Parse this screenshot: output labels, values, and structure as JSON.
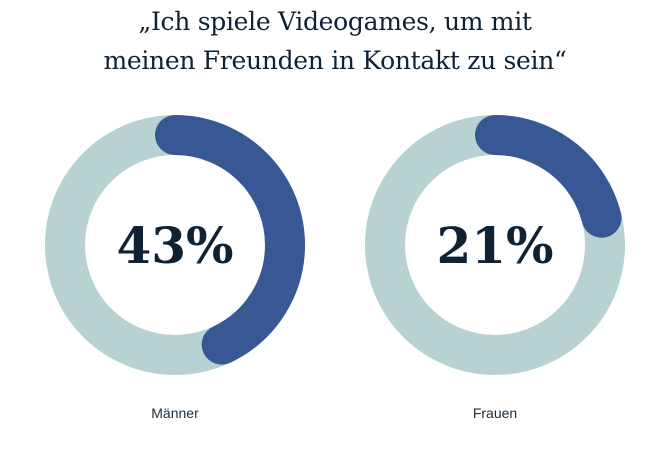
{
  "chart_data": {
    "type": "donut",
    "title_lines": [
      "„Ich spiele Videogames, um mit",
      "meinen Freunden in Kontakt zu sein“"
    ],
    "categories": [
      "Männer",
      "Frauen"
    ],
    "values": [
      43,
      21
    ],
    "value_labels": [
      "43%",
      "21%"
    ],
    "unit": "%",
    "colors": {
      "value": "#375895",
      "remainder": "#b7d2d1",
      "text": "#0f2233"
    }
  }
}
